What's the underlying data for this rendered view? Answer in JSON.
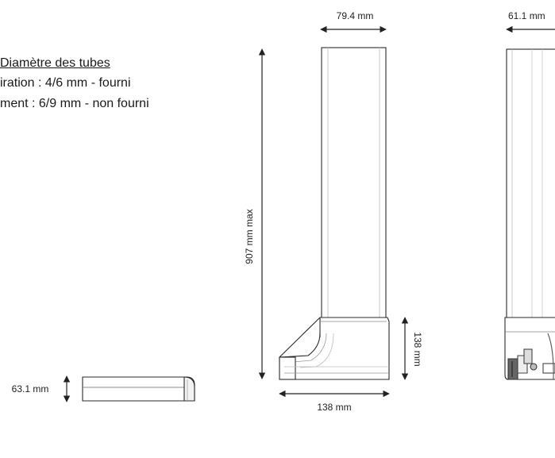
{
  "notes": {
    "title": "Diamètre des tubes",
    "line1": "iration : 4/6 mm - fourni",
    "line2": "ment : 6/9 mm - non fourni"
  },
  "dimensions": {
    "top_width": "79.4 mm",
    "side_width": "61.1 mm",
    "height_max": "907 mm max",
    "elbow_height": "138 mm",
    "elbow_width": "138 mm",
    "endcap_height": "63.1 mm"
  },
  "colors": {
    "line": "#2a2a2a",
    "light_line": "#9a9a9a",
    "fill": "#ffffff"
  }
}
